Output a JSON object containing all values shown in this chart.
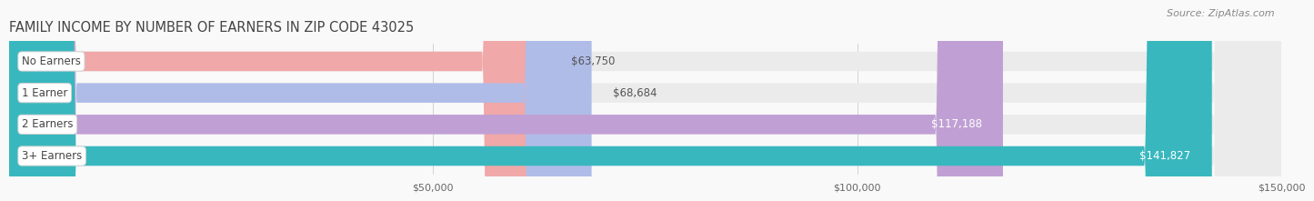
{
  "title": "FAMILY INCOME BY NUMBER OF EARNERS IN ZIP CODE 43025",
  "source": "Source: ZipAtlas.com",
  "categories": [
    "No Earners",
    "1 Earner",
    "2 Earners",
    "3+ Earners"
  ],
  "values": [
    63750,
    68684,
    117188,
    141827
  ],
  "labels": [
    "$63,750",
    "$68,684",
    "$117,188",
    "$141,827"
  ],
  "bar_colors": [
    "#f0a8a8",
    "#b0bce8",
    "#c0a0d4",
    "#38b8be"
  ],
  "bar_bg_color": "#ebebeb",
  "xmin": 0,
  "xmax": 150000,
  "xticks": [
    50000,
    100000,
    150000
  ],
  "xticklabels": [
    "$50,000",
    "$100,000",
    "$150,000"
  ],
  "title_fontsize": 10.5,
  "source_fontsize": 8,
  "label_fontsize": 8.5,
  "category_fontsize": 8.5,
  "background_color": "#f9f9f9",
  "bar_bg_full_color": "#ebebeb",
  "label_inside_color": "white",
  "label_outside_color": "#555555",
  "label_threshold": 0.58
}
